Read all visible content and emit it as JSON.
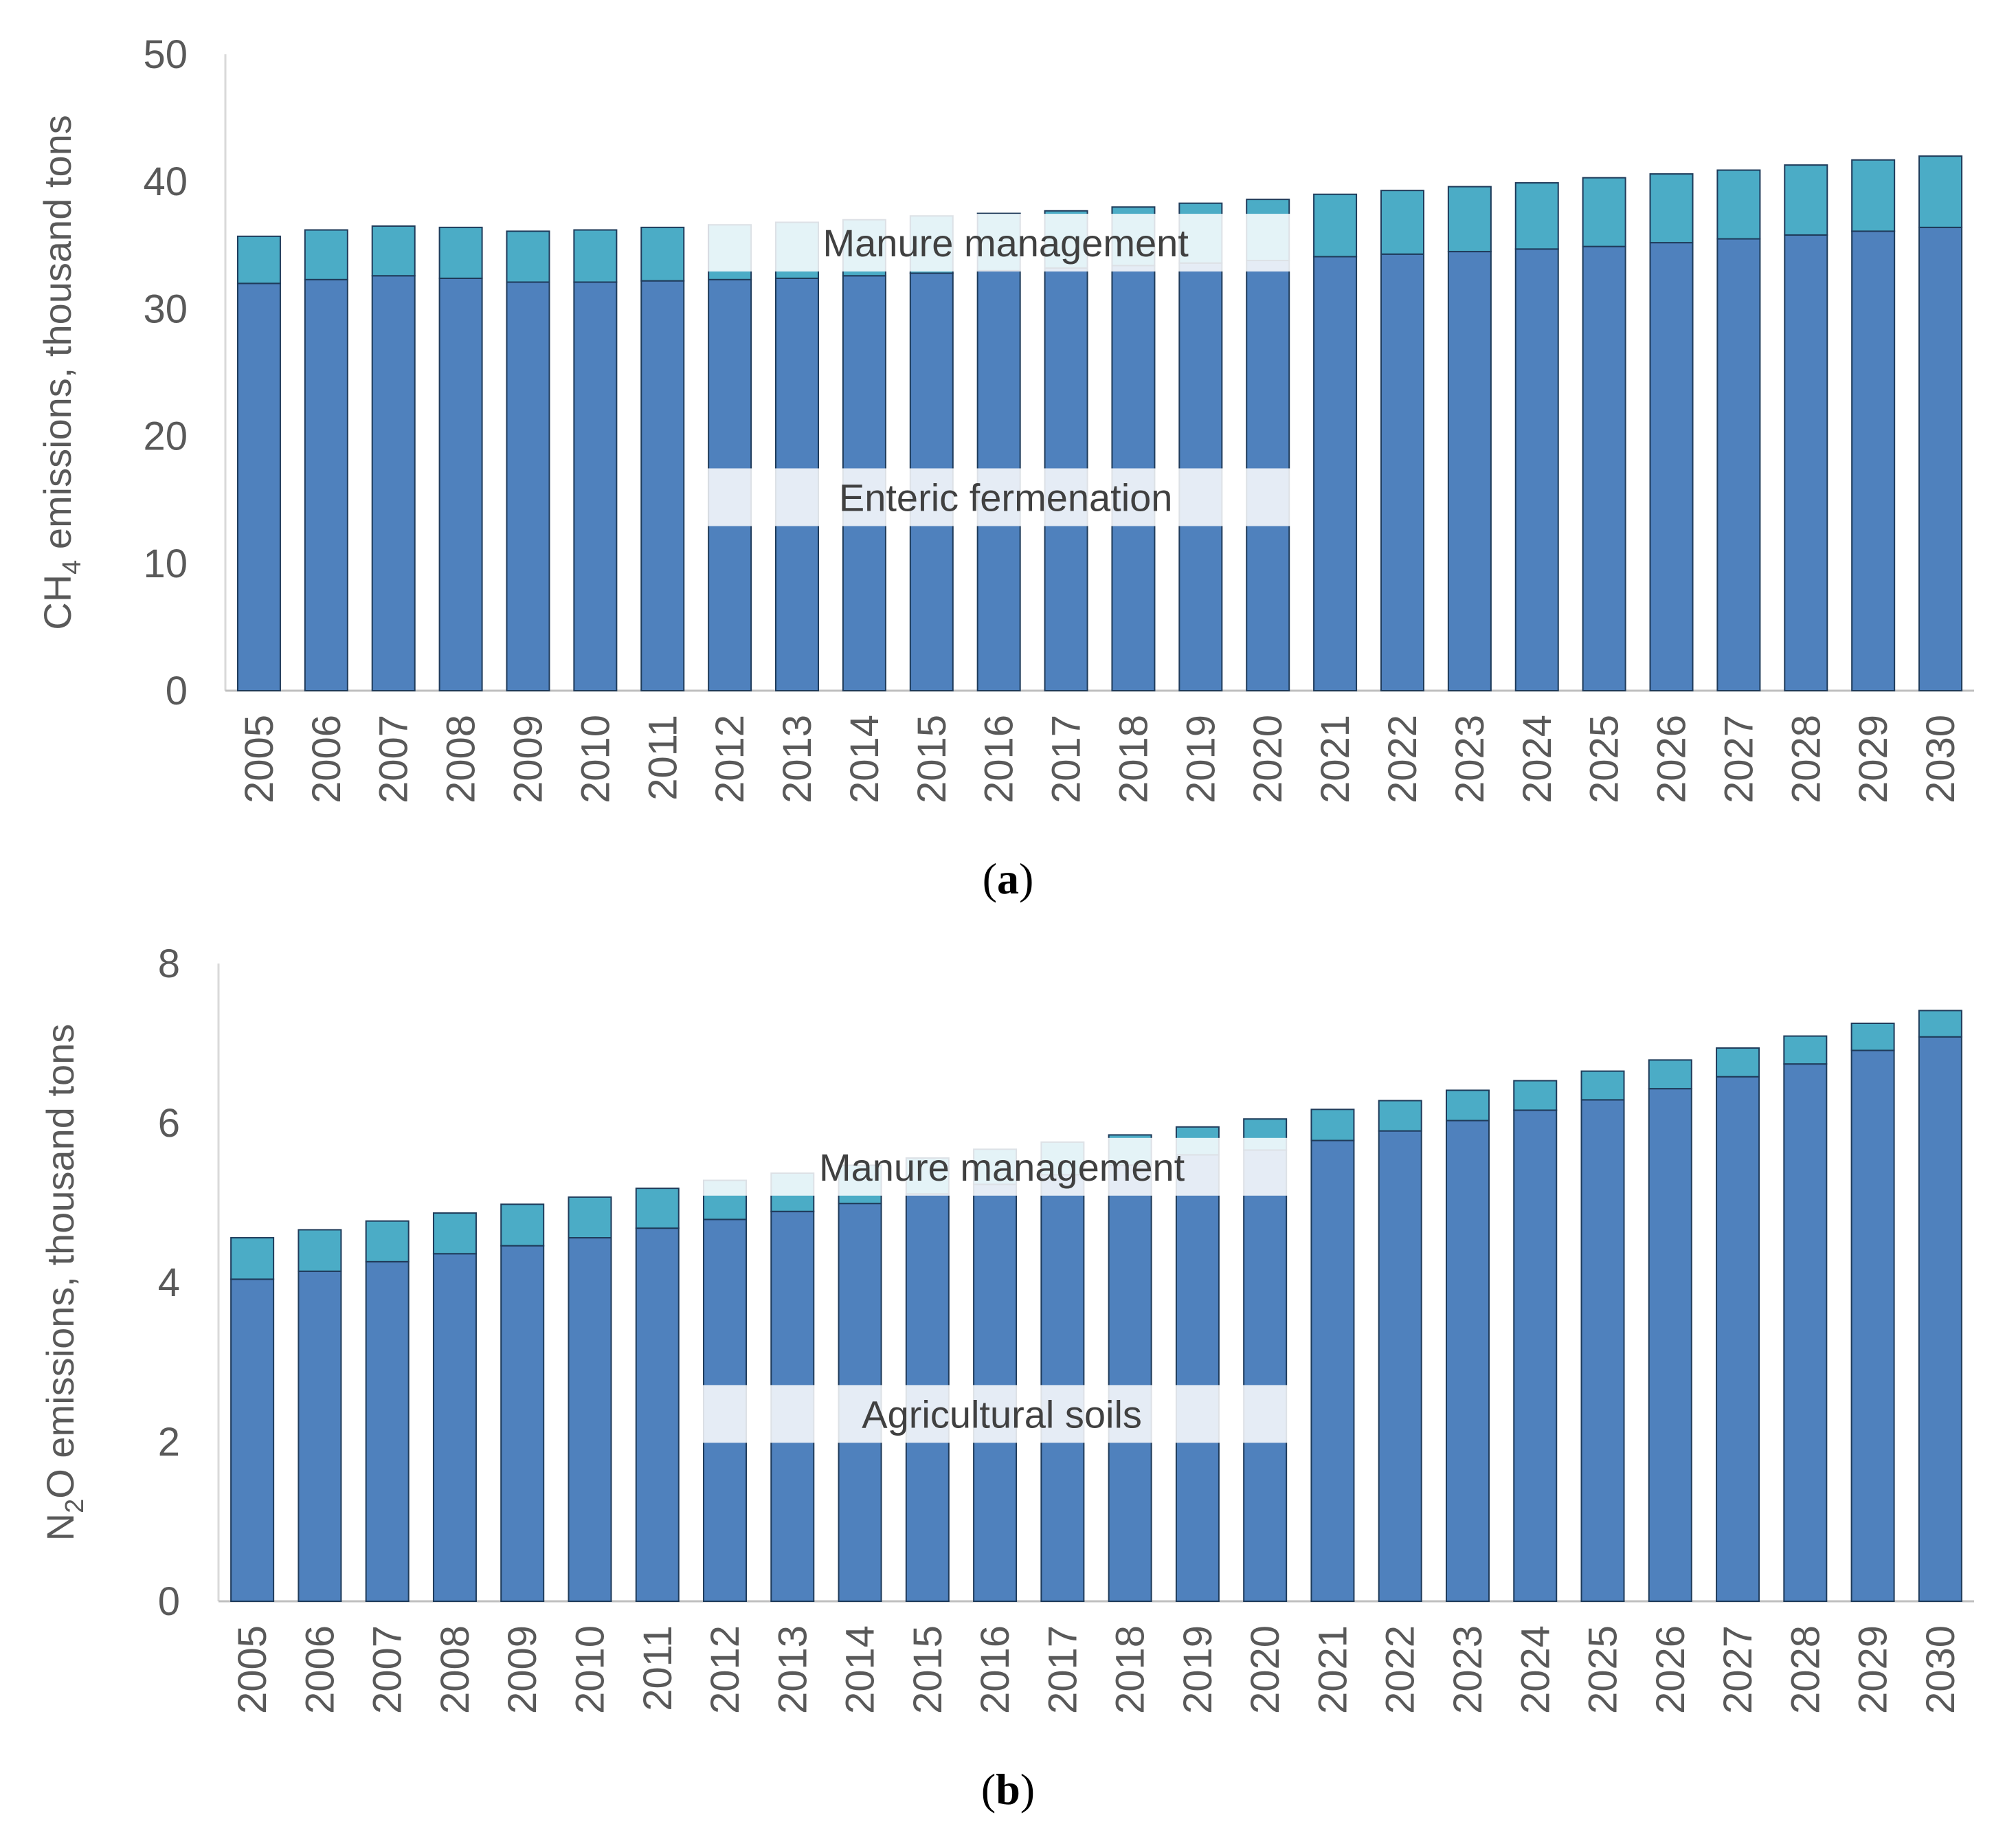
{
  "chart_data": [
    {
      "type": "bar",
      "stacked": true,
      "panel_label": "a",
      "ylabel": "CH4 emissions, thousand tons",
      "ylabel_parts": {
        "main": "CH",
        "sub": "4",
        "rest": " emissions, thousand tons"
      },
      "ylim": [
        0,
        50
      ],
      "yticks": [
        0,
        10,
        20,
        30,
        40,
        50
      ],
      "categories": [
        "2005",
        "2006",
        "2007",
        "2008",
        "2009",
        "2010",
        "2011",
        "2012",
        "2013",
        "2014",
        "2015",
        "2016",
        "2017",
        "2018",
        "2019",
        "2020",
        "2021",
        "2022",
        "2023",
        "2024",
        "2025",
        "2026",
        "2027",
        "2028",
        "2029",
        "2030"
      ],
      "series": [
        {
          "name": "Enteric fermenation",
          "color": "#4f81bd",
          "values": [
            32.0,
            32.3,
            32.6,
            32.4,
            32.1,
            32.1,
            32.2,
            32.3,
            32.4,
            32.6,
            32.8,
            33.0,
            33.2,
            33.4,
            33.6,
            33.8,
            34.1,
            34.3,
            34.5,
            34.7,
            34.9,
            35.2,
            35.5,
            35.8,
            36.1,
            36.4
          ]
        },
        {
          "name": "Manure management",
          "color": "#4bacc6",
          "values": [
            3.7,
            3.9,
            3.9,
            4.0,
            4.0,
            4.1,
            4.2,
            4.3,
            4.4,
            4.4,
            4.5,
            4.5,
            4.5,
            4.6,
            4.7,
            4.8,
            4.9,
            5.0,
            5.1,
            5.2,
            5.4,
            5.4,
            5.4,
            5.5,
            5.6,
            5.6
          ]
        }
      ],
      "annotations": [
        {
          "text": "Manure management",
          "x_from": "2012",
          "x_to": "2020",
          "y": 35.2
        },
        {
          "text": "Enteric fermenation",
          "x_from": "2012",
          "x_to": "2020",
          "y": 15.2
        }
      ]
    },
    {
      "type": "bar",
      "stacked": true,
      "panel_label": "b",
      "ylabel": "N2O emissions, thousand tons",
      "ylabel_parts": {
        "main": "N",
        "sub": "2",
        "rest": "O emissions, thousand tons"
      },
      "ylim": [
        0,
        8
      ],
      "yticks": [
        0,
        2,
        4,
        6,
        8
      ],
      "categories": [
        "2005",
        "2006",
        "2007",
        "2008",
        "2009",
        "2010",
        "2011",
        "2012",
        "2013",
        "2014",
        "2015",
        "2016",
        "2017",
        "2018",
        "2019",
        "2020",
        "2021",
        "2022",
        "2023",
        "2024",
        "2025",
        "2026",
        "2027",
        "2028",
        "2029",
        "2030"
      ],
      "series": [
        {
          "name": "Agricultural soils",
          "color": "#4f81bd",
          "values": [
            4.04,
            4.14,
            4.26,
            4.36,
            4.46,
            4.56,
            4.68,
            4.79,
            4.89,
            4.99,
            5.11,
            5.23,
            5.35,
            5.47,
            5.6,
            5.66,
            5.78,
            5.9,
            6.03,
            6.16,
            6.29,
            6.43,
            6.58,
            6.74,
            6.91,
            7.08
          ]
        },
        {
          "name": "Manure management",
          "color": "#4bacc6",
          "values": [
            0.52,
            0.52,
            0.51,
            0.51,
            0.52,
            0.51,
            0.5,
            0.49,
            0.48,
            0.48,
            0.45,
            0.44,
            0.41,
            0.38,
            0.35,
            0.39,
            0.39,
            0.38,
            0.38,
            0.37,
            0.36,
            0.36,
            0.36,
            0.35,
            0.34,
            0.33
          ]
        }
      ],
      "annotations": [
        {
          "text": "Manure management",
          "x_from": "2012",
          "x_to": "2020",
          "y": 5.45
        },
        {
          "text": "Agricultural soils",
          "x_from": "2012",
          "x_to": "2020",
          "y": 2.35
        }
      ]
    }
  ]
}
